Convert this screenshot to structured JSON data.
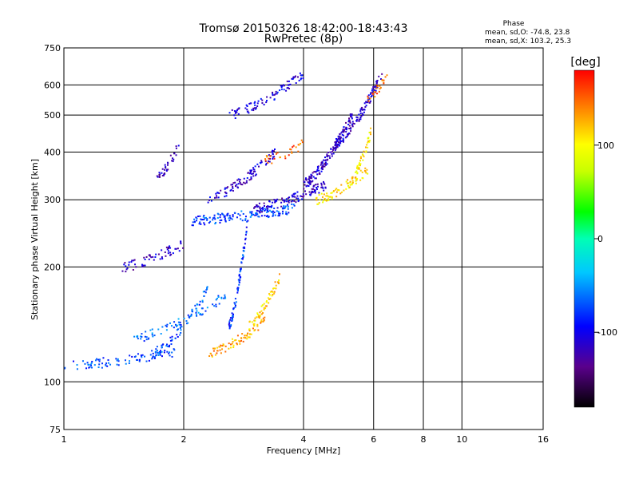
{
  "chart_data": {
    "type": "scatter",
    "title": "Tromsø 20150326 18:42:00-18:43:43",
    "subtitle": "RwPretec (8p)",
    "xlabel": "Frequency [MHz]",
    "ylabel": "Stationary phase Virtual Height [km]",
    "x_scale": "log",
    "y_scale": "log",
    "xlim": [
      1,
      16
    ],
    "ylim": [
      75,
      750
    ],
    "x_ticks": [
      1,
      2,
      4,
      6,
      8,
      10,
      16
    ],
    "x_tick_labels": [
      "1",
      "2",
      "4",
      "6",
      "8",
      "10",
      "16"
    ],
    "y_ticks": [
      75,
      100,
      200,
      300,
      400,
      500,
      600,
      750
    ],
    "y_tick_labels": [
      "75",
      "100",
      "200",
      "300",
      "400",
      "500",
      "600",
      "750"
    ],
    "grid": true,
    "stats": {
      "heading": "Phase",
      "line_o": "mean, sd,O: -74.8, 23.8",
      "line_x": "mean, sd,X: 103.2, 25.3"
    },
    "colorbar": {
      "label": "[deg]",
      "min": -180,
      "max": 180,
      "ticks": [
        100,
        0,
        -100
      ],
      "tick_labels": [
        "100",
        "0",
        "-100"
      ]
    },
    "series": [
      {
        "component": "O",
        "traces": [
          {
            "f0": 1.0,
            "f1": 1.9,
            "h0": 110,
            "h1": 120,
            "n": 90,
            "phase": -75
          },
          {
            "f0": 1.7,
            "f1": 2.3,
            "h0": 120,
            "h1": 175,
            "n": 70,
            "phase": -70
          },
          {
            "f0": 2.1,
            "f1": 3.8,
            "h0": 265,
            "h1": 285,
            "n": 150,
            "phase": -75
          },
          {
            "f0": 3.0,
            "f1": 4.6,
            "h0": 285,
            "h1": 330,
            "n": 120,
            "phase": -110
          },
          {
            "f0": 4.0,
            "f1": 5.3,
            "h0": 330,
            "h1": 500,
            "n": 160,
            "phase": -115
          },
          {
            "f0": 4.8,
            "f1": 6.3,
            "h0": 420,
            "h1": 640,
            "n": 110,
            "phase": -110
          },
          {
            "f0": 1.4,
            "f1": 2.0,
            "h0": 200,
            "h1": 230,
            "n": 60,
            "phase": -115
          },
          {
            "f0": 2.6,
            "f1": 4.0,
            "h0": 500,
            "h1": 640,
            "n": 90,
            "phase": -105
          },
          {
            "f0": 2.3,
            "f1": 3.4,
            "h0": 300,
            "h1": 400,
            "n": 100,
            "phase": -110
          },
          {
            "f0": 1.7,
            "f1": 1.95,
            "h0": 340,
            "h1": 420,
            "n": 35,
            "phase": -120
          },
          {
            "f0": 2.6,
            "f1": 2.9,
            "h0": 140,
            "h1": 270,
            "n": 80,
            "phase": -80
          },
          {
            "f0": 1.5,
            "f1": 2.6,
            "h0": 130,
            "h1": 170,
            "n": 70,
            "phase": -65
          }
        ]
      },
      {
        "component": "X",
        "traces": [
          {
            "f0": 2.3,
            "f1": 3.2,
            "h0": 118,
            "h1": 145,
            "n": 80,
            "phase": 130
          },
          {
            "f0": 2.9,
            "f1": 3.5,
            "h0": 140,
            "h1": 190,
            "n": 60,
            "phase": 115
          },
          {
            "f0": 4.3,
            "f1": 5.8,
            "h0": 300,
            "h1": 360,
            "n": 80,
            "phase": 110
          },
          {
            "f0": 5.4,
            "f1": 5.9,
            "h0": 360,
            "h1": 450,
            "n": 40,
            "phase": 105
          },
          {
            "f0": 3.2,
            "f1": 4.0,
            "h0": 380,
            "h1": 420,
            "n": 30,
            "phase": 150
          },
          {
            "f0": 5.8,
            "f1": 6.6,
            "h0": 560,
            "h1": 640,
            "n": 25,
            "phase": 150
          }
        ]
      }
    ]
  }
}
